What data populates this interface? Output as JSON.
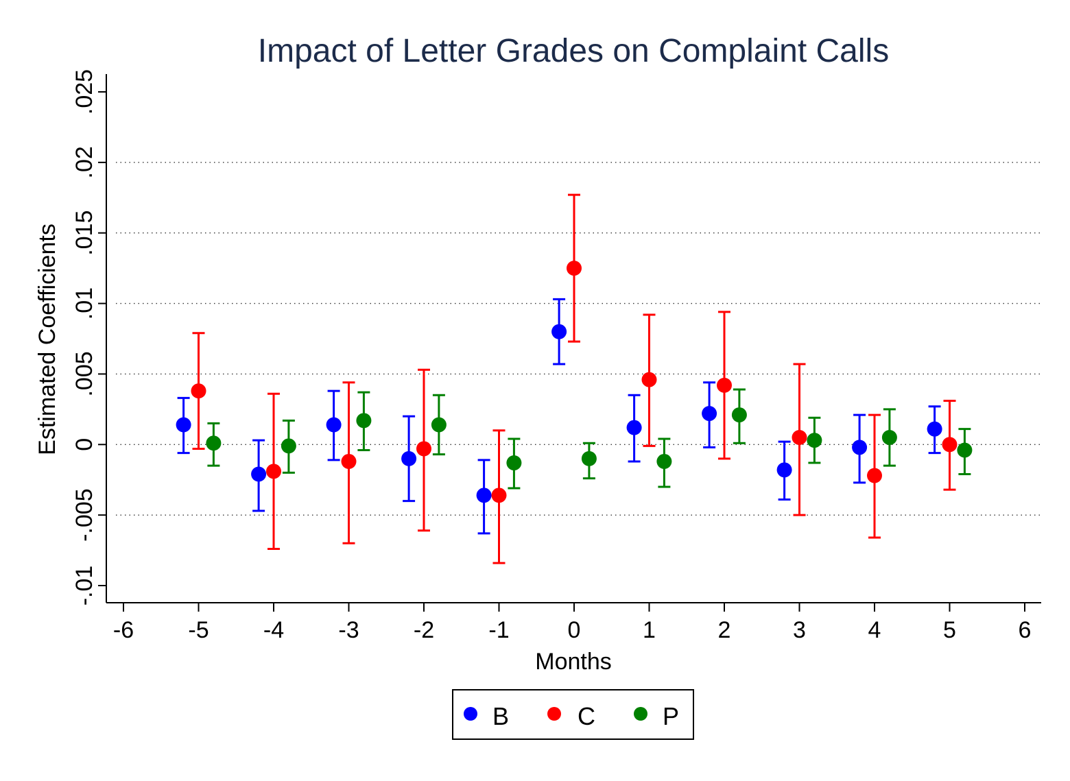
{
  "chart_data": {
    "type": "scatter",
    "title": "Impact of Letter Grades on Complaint Calls",
    "xlabel": "Months",
    "ylabel": "Estimated Coefficients",
    "xlim": [
      -6,
      6
    ],
    "ylim": [
      -0.01,
      0.025
    ],
    "x_ticks": [
      {
        "value": -6,
        "label": "-6"
      },
      {
        "value": -5,
        "label": "-5"
      },
      {
        "value": -4,
        "label": "-4"
      },
      {
        "value": -3,
        "label": "-3"
      },
      {
        "value": -2,
        "label": "-2"
      },
      {
        "value": -1,
        "label": "-1"
      },
      {
        "value": 0,
        "label": "0"
      },
      {
        "value": 1,
        "label": "1"
      },
      {
        "value": 2,
        "label": "2"
      },
      {
        "value": 3,
        "label": "3"
      },
      {
        "value": 4,
        "label": "4"
      },
      {
        "value": 5,
        "label": "5"
      },
      {
        "value": 6,
        "label": "6"
      }
    ],
    "y_ticks": [
      {
        "value": -0.01,
        "label": "-.01"
      },
      {
        "value": -0.005,
        "label": "-.005"
      },
      {
        "value": 0,
        "label": "0"
      },
      {
        "value": 0.005,
        "label": ".005"
      },
      {
        "value": 0.01,
        "label": ".01"
      },
      {
        "value": 0.015,
        "label": ".015"
      },
      {
        "value": 0.02,
        "label": ".02"
      },
      {
        "value": 0.025,
        "label": ".025"
      }
    ],
    "grid": "horizontal dotted at y ticks",
    "legend_position": "bottom-center",
    "error_bars": true,
    "series": [
      {
        "name": "B",
        "color": "#0000ff",
        "x_offset": -0.2,
        "points": [
          {
            "x": -5,
            "y": 0.0014,
            "lo": -0.0006,
            "hi": 0.0033
          },
          {
            "x": -4,
            "y": -0.0021,
            "lo": -0.0047,
            "hi": 0.0003
          },
          {
            "x": -3,
            "y": 0.0014,
            "lo": -0.0011,
            "hi": 0.0038
          },
          {
            "x": -2,
            "y": -0.001,
            "lo": -0.004,
            "hi": 0.002
          },
          {
            "x": -1,
            "y": -0.0036,
            "lo": -0.0063,
            "hi": -0.0011
          },
          {
            "x": 0,
            "y": 0.008,
            "lo": 0.0057,
            "hi": 0.0103
          },
          {
            "x": 1,
            "y": 0.0012,
            "lo": -0.0012,
            "hi": 0.0035
          },
          {
            "x": 2,
            "y": 0.0022,
            "lo": -0.0002,
            "hi": 0.0044
          },
          {
            "x": 3,
            "y": -0.0018,
            "lo": -0.0039,
            "hi": 0.0002
          },
          {
            "x": 4,
            "y": -0.0002,
            "lo": -0.0027,
            "hi": 0.0021
          },
          {
            "x": 5,
            "y": 0.0011,
            "lo": -0.0006,
            "hi": 0.0027
          }
        ]
      },
      {
        "name": "C",
        "color": "#ff0000",
        "x_offset": 0.0,
        "points": [
          {
            "x": -5,
            "y": 0.0038,
            "lo": -0.0003,
            "hi": 0.0079
          },
          {
            "x": -4,
            "y": -0.0019,
            "lo": -0.0074,
            "hi": 0.0036
          },
          {
            "x": -3,
            "y": -0.0012,
            "lo": -0.007,
            "hi": 0.0044
          },
          {
            "x": -2,
            "y": -0.0003,
            "lo": -0.0061,
            "hi": 0.0053
          },
          {
            "x": -1,
            "y": -0.0036,
            "lo": -0.0084,
            "hi": 0.001
          },
          {
            "x": 0,
            "y": 0.0125,
            "lo": 0.0073,
            "hi": 0.0177
          },
          {
            "x": 1,
            "y": 0.0046,
            "lo": -0.0001,
            "hi": 0.0092
          },
          {
            "x": 2,
            "y": 0.0042,
            "lo": -0.001,
            "hi": 0.0094
          },
          {
            "x": 3,
            "y": 0.0005,
            "lo": -0.005,
            "hi": 0.0057
          },
          {
            "x": 4,
            "y": -0.0022,
            "lo": -0.0066,
            "hi": 0.0021
          },
          {
            "x": 5,
            "y": 0.0,
            "lo": -0.0032,
            "hi": 0.0031
          }
        ]
      },
      {
        "name": "P",
        "color": "#008000",
        "x_offset": 0.2,
        "points": [
          {
            "x": -5,
            "y": 0.0001,
            "lo": -0.0015,
            "hi": 0.0015
          },
          {
            "x": -4,
            "y": -0.0001,
            "lo": -0.002,
            "hi": 0.0017
          },
          {
            "x": -3,
            "y": 0.0017,
            "lo": -0.0004,
            "hi": 0.0037
          },
          {
            "x": -2,
            "y": 0.0014,
            "lo": -0.0007,
            "hi": 0.0035
          },
          {
            "x": -1,
            "y": -0.0013,
            "lo": -0.0031,
            "hi": 0.0004
          },
          {
            "x": 0,
            "y": -0.001,
            "lo": -0.0024,
            "hi": 0.0001
          },
          {
            "x": 1,
            "y": -0.0012,
            "lo": -0.003,
            "hi": 0.0004
          },
          {
            "x": 2,
            "y": 0.0021,
            "lo": 0.0001,
            "hi": 0.0039
          },
          {
            "x": 3,
            "y": 0.0003,
            "lo": -0.0013,
            "hi": 0.0019
          },
          {
            "x": 4,
            "y": 0.0005,
            "lo": -0.0015,
            "hi": 0.0025
          },
          {
            "x": 5,
            "y": -0.0004,
            "lo": -0.0021,
            "hi": 0.0011
          }
        ]
      }
    ]
  }
}
